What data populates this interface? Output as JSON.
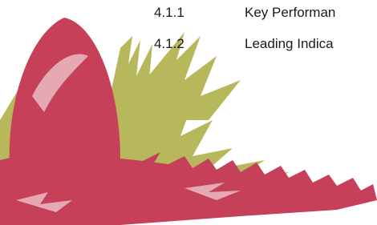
{
  "toc": {
    "items": [
      {
        "number": "4.1.1",
        "title": "Key Performan"
      },
      {
        "number": "4.1.2",
        "title": "Leading Indica"
      }
    ]
  }
}
